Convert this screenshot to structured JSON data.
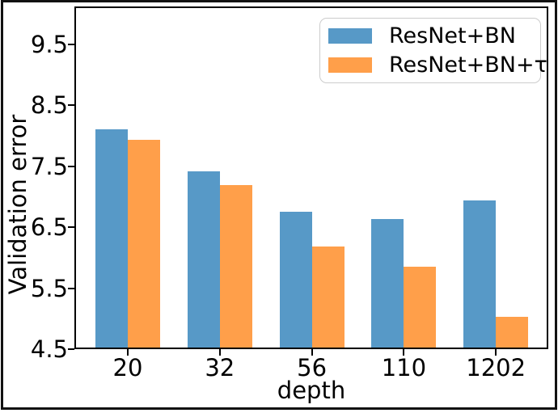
{
  "chart_data": {
    "type": "bar",
    "title": "",
    "xlabel": "depth",
    "ylabel": "Validation error",
    "categories": [
      "20",
      "32",
      "56",
      "110",
      "1202"
    ],
    "series": [
      {
        "name": "ResNet+BN",
        "color": "#5799c7",
        "values": [
          8.08,
          7.39,
          6.73,
          6.61,
          6.91
        ]
      },
      {
        "name": "ResNet+BN+τ",
        "color": "#ff9f4a",
        "values": [
          7.9,
          7.17,
          6.16,
          5.83,
          5.0
        ]
      }
    ],
    "ylim": [
      4.5,
      10.12
    ],
    "yticks": [
      4.5,
      5.5,
      6.5,
      7.5,
      8.5,
      9.5
    ],
    "ytick_decimals": 1,
    "grid": false,
    "legend_position": "upper right",
    "frame_color": "#111111",
    "spine_color": "#000000"
  }
}
